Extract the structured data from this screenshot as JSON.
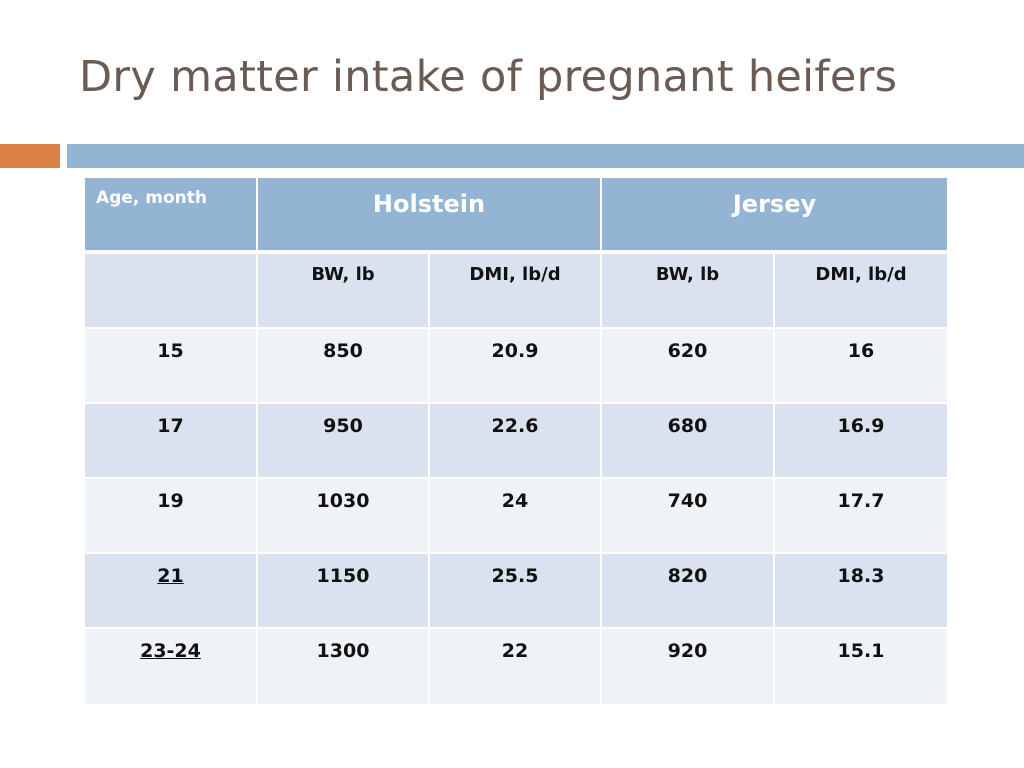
{
  "slide": {
    "title": "Dry matter intake of pregnant heifers"
  },
  "colors": {
    "accent_orange": "#dd8246",
    "accent_blue": "#93b4d3",
    "highlight_red": "#e01515"
  },
  "table": {
    "age_header": "Age, month",
    "groups": [
      "Holstein",
      "Jersey"
    ],
    "subheaders": [
      "BW, lb",
      "DMI, lb/d",
      "BW, lb",
      "DMI, lb/d"
    ],
    "rows": [
      {
        "age": "15",
        "holstein_bw": "850",
        "holstein_dmi": "20.9",
        "jersey_bw": "620",
        "jersey_dmi": "16"
      },
      {
        "age": "17",
        "holstein_bw": "950",
        "holstein_dmi": "22.6",
        "jersey_bw": "680",
        "jersey_dmi": "16.9"
      },
      {
        "age": "19",
        "holstein_bw": "1030",
        "holstein_dmi": "24",
        "jersey_bw": "740",
        "jersey_dmi": "17.7"
      },
      {
        "age": "21",
        "holstein_bw": "1150",
        "holstein_dmi": "25.5",
        "jersey_bw": "820",
        "jersey_dmi": "18.3"
      },
      {
        "age": "23-24",
        "holstein_bw": "1300",
        "holstein_dmi": "22",
        "jersey_bw": "920",
        "jersey_dmi": "15.1"
      }
    ]
  }
}
